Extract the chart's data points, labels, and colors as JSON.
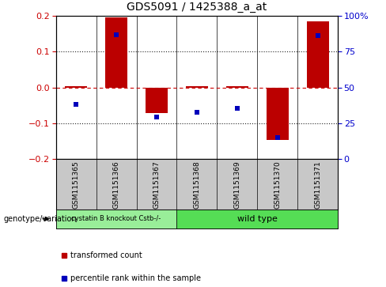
{
  "title": "GDS5091 / 1425388_a_at",
  "samples": [
    "GSM1151365",
    "GSM1151366",
    "GSM1151367",
    "GSM1151368",
    "GSM1151369",
    "GSM1151370",
    "GSM1151371"
  ],
  "red_values": [
    0.003,
    0.195,
    -0.072,
    0.003,
    0.003,
    -0.145,
    0.185
  ],
  "blue_values": [
    -0.048,
    0.148,
    -0.082,
    -0.068,
    -0.058,
    -0.14,
    0.145
  ],
  "ylim_left": [
    -0.2,
    0.2
  ],
  "ylim_right": [
    0,
    100
  ],
  "yticks_left": [
    -0.2,
    -0.1,
    0,
    0.1,
    0.2
  ],
  "yticks_right": [
    0,
    25,
    50,
    75,
    100
  ],
  "ytick_labels_right": [
    "0",
    "25",
    "50",
    "75",
    "100%"
  ],
  "red_color": "#bb0000",
  "blue_color": "#0000bb",
  "dashed_line_color": "#cc0000",
  "dotted_line_color": "#222222",
  "bar_width": 0.55,
  "blue_marker_size": 5,
  "group1_label": "cystatin B knockout Cstb-/-",
  "group2_label": "wild type",
  "group1_n": 3,
  "group2_n": 4,
  "group1_color": "#99ee99",
  "group2_color": "#55dd55",
  "genotype_label": "genotype/variation",
  "legend_red": "transformed count",
  "legend_blue": "percentile rank within the sample",
  "tick_label_color_left": "#cc0000",
  "tick_label_color_right": "#0000cc",
  "xtick_bg_color": "#c8c8c8",
  "xtick_divider_color": "#888888"
}
